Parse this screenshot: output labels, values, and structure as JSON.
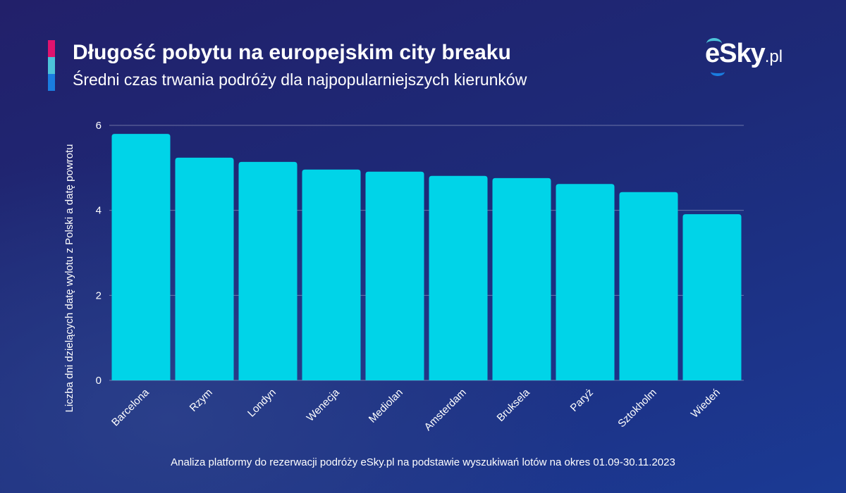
{
  "header": {
    "title": "Długość pobytu na europejskim city breaku",
    "subtitle": "Średni czas trwania podróży dla najpopularniejszych kierunków",
    "accent_colors": [
      "#e0136e",
      "#4cc3d9",
      "#1a7de0"
    ]
  },
  "logo": {
    "main": "eSky",
    "suffix": ".pl"
  },
  "footer": "Analiza platformy do rezerwacji podróży eSky.pl na podstawie wyszukiwań lotów na okres 01.09-30.11.2023",
  "chart_data": {
    "type": "bar",
    "title": "Długość pobytu na europejskim city breaku",
    "xlabel": "",
    "ylabel": "Liczba dni dzielących datę wylotu z Polski a datę powrotu",
    "ylim": [
      0,
      6
    ],
    "yticks": [
      0,
      2,
      4,
      6
    ],
    "grid": true,
    "bar_color": "#00d4e8",
    "categories": [
      "Barcelona",
      "Rzym",
      "Londyn",
      "Wenecja",
      "Mediolan",
      "Amsterdam",
      "Bruksela",
      "Paryż",
      "Sztokholm",
      "Wiedeń"
    ],
    "values": [
      5.8,
      5.24,
      5.14,
      4.96,
      4.91,
      4.81,
      4.76,
      4.62,
      4.43,
      3.91
    ]
  }
}
